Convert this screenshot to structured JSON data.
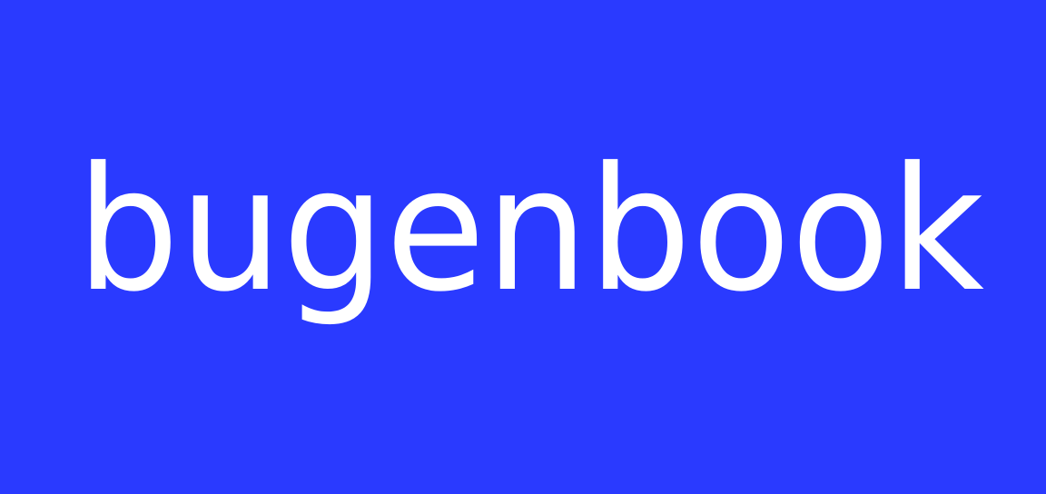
{
  "brand": {
    "wordmark": "bugenbook"
  },
  "colors": {
    "background": "#2a3aff",
    "text": "#ffffff"
  }
}
